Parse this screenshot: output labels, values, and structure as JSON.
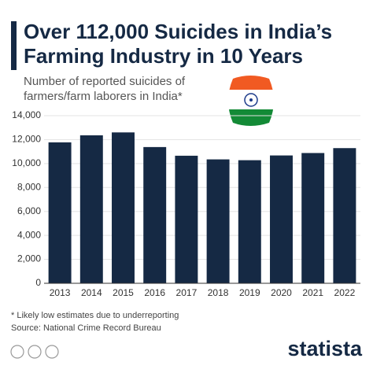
{
  "chart_data": {
    "type": "bar",
    "title": [
      "Over 112,000 Suicides in India’s",
      "Farming Industry in 10 Years"
    ],
    "subtitle": [
      "Number of reported suicides of",
      "farmers/farm laborers in India*"
    ],
    "categories": [
      "2013",
      "2014",
      "2015",
      "2016",
      "2017",
      "2018",
      "2019",
      "2020",
      "2021",
      "2022"
    ],
    "values": [
      11772,
      12360,
      12602,
      11379,
      10655,
      10349,
      10281,
      10677,
      10881,
      11290
    ],
    "color": "#152944",
    "ylim": [
      0,
      14000
    ],
    "yticks": [
      0,
      {
        "value": 2000,
        "label": "2,000"
      },
      {
        "value": 4000,
        "label": "4,000"
      },
      {
        "value": 6000,
        "label": "6,000"
      },
      {
        "value": 8000,
        "label": "8,000"
      },
      {
        "value": 10000,
        "label": "10,000"
      },
      {
        "value": 12000,
        "label": "12,000"
      },
      {
        "value": 14000,
        "label": "14,000"
      }
    ],
    "grid": true,
    "footnote": "* Likely low estimates due to underreporting",
    "source": "Source: National Crime Record Bureau",
    "logo": "statista"
  }
}
